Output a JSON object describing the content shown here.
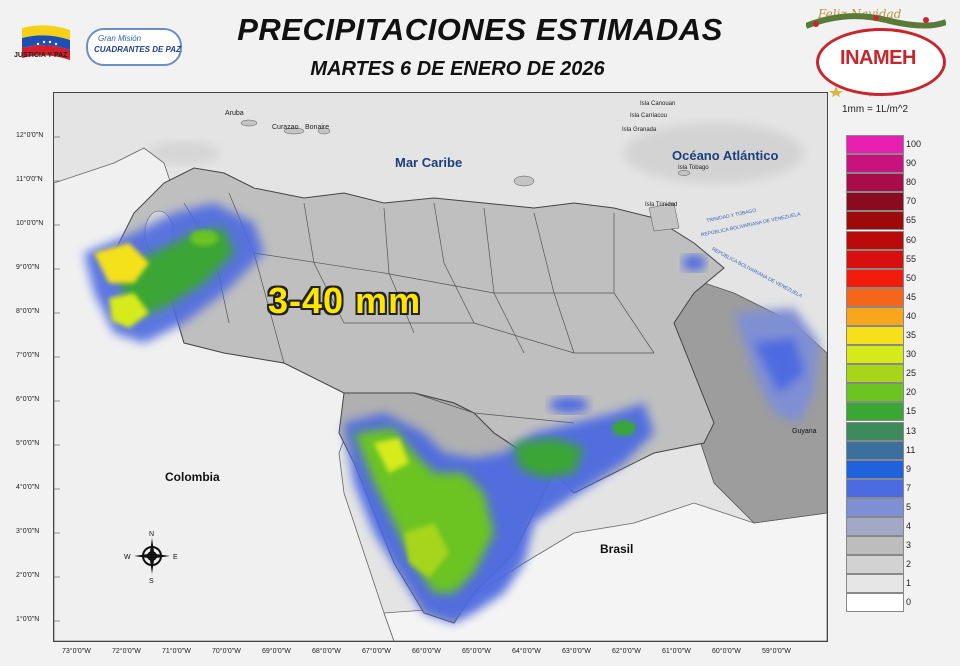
{
  "header": {
    "title": "PRECIPITACIONES ESTIMADAS",
    "date": "MARTES 6 DE ENERO DE 2026"
  },
  "logos": {
    "left_caption": "JUSTICIA Y PAZ",
    "mision_top": "Gran Misión",
    "mision_main": "CUADRANTES DE PAZ",
    "inameh": "INAMEH",
    "greeting": "Feliz Navidad"
  },
  "map": {
    "big_label": "3-40 mm",
    "places": {
      "mar_caribe": "Mar Caribe",
      "oceano": "Océano Atlántico",
      "colombia": "Colombia",
      "brasil": "Brasil",
      "guyana": "Guyana",
      "aruba": "Aruba",
      "curazao": "Curazao",
      "bonaire": "Bonaire",
      "canouan": "Isla Canouan",
      "carriacou": "Isla Carriacou",
      "granada": "Isla Granada",
      "tobago": "Isla Tobago",
      "trinidad": "Isla Trinidad",
      "zone1": "TRINIDAD Y TOBAGO",
      "zone2": "REPÚBLICA BOLIVARIANA DE VENEZUELA",
      "zone3": "REPÚBLICA BOLIVARIANA DE VENEZUELA"
    },
    "lat_labels": [
      "12°0'0\"N",
      "11°0'0\"N",
      "10°0'0\"N",
      "9°0'0\"N",
      "8°0'0\"N",
      "7°0'0\"N",
      "6°0'0\"N",
      "5°0'0\"N",
      "4°0'0\"N",
      "3°0'0\"N",
      "2°0'0\"N",
      "1°0'0\"N"
    ],
    "lon_labels": [
      "73°0'0\"W",
      "72°0'0\"W",
      "71°0'0\"W",
      "70°0'0\"W",
      "69°0'0\"W",
      "68°0'0\"W",
      "67°0'0\"W",
      "66°0'0\"W",
      "65°0'0\"W",
      "64°0'0\"W",
      "63°0'0\"W",
      "62°0'0\"W",
      "61°0'0\"W",
      "60°0'0\"W",
      "59°0'0\"W"
    ],
    "compass": {
      "n": "N",
      "s": "S",
      "e": "E",
      "w": "W"
    }
  },
  "legend": {
    "unit": "1mm = 1L/m^2",
    "items": [
      {
        "label": "100",
        "color": "#e81fb0"
      },
      {
        "label": "90",
        "color": "#c8127e"
      },
      {
        "label": "80",
        "color": "#a80c4b"
      },
      {
        "label": "70",
        "color": "#8a0a1f"
      },
      {
        "label": "65",
        "color": "#9e0a0a"
      },
      {
        "label": "60",
        "color": "#bb0a0a"
      },
      {
        "label": "55",
        "color": "#d90e0e"
      },
      {
        "label": "50",
        "color": "#f21c0c"
      },
      {
        "label": "45",
        "color": "#f5661b"
      },
      {
        "label": "40",
        "color": "#f8a61c"
      },
      {
        "label": "35",
        "color": "#f5e01a"
      },
      {
        "label": "30",
        "color": "#d6ea1b"
      },
      {
        "label": "25",
        "color": "#a6d51a"
      },
      {
        "label": "20",
        "color": "#6cc421"
      },
      {
        "label": "15",
        "color": "#3aa634"
      },
      {
        "label": "13",
        "color": "#3d8a5d"
      },
      {
        "label": "11",
        "color": "#3a6f9e"
      },
      {
        "label": "9",
        "color": "#1f62dc"
      },
      {
        "label": "7",
        "color": "#4d6be0"
      },
      {
        "label": "5",
        "color": "#7f8fd4"
      },
      {
        "label": "4",
        "color": "#a3a8c7"
      },
      {
        "label": "3",
        "color": "#bdbdbd"
      },
      {
        "label": "2",
        "color": "#d2d2d2"
      },
      {
        "label": "1",
        "color": "#e6e6e6"
      },
      {
        "label": "0",
        "color": "#ffffff"
      }
    ]
  }
}
